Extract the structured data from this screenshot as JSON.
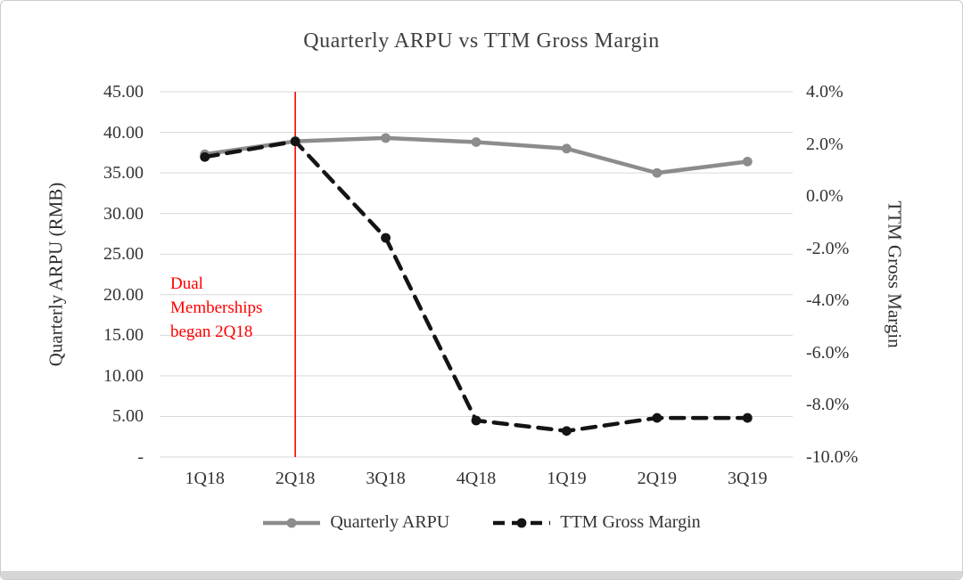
{
  "chart_data": {
    "type": "line",
    "title": "Quarterly ARPU vs TTM Gross Margin",
    "categories": [
      "1Q18",
      "2Q18",
      "3Q18",
      "4Q18",
      "1Q19",
      "2Q19",
      "3Q19"
    ],
    "series": [
      {
        "name": "Quarterly ARPU",
        "axis": "left",
        "color": "#8c8c8c",
        "dash": "solid",
        "values": [
          37.3,
          38.9,
          39.3,
          38.8,
          38.0,
          35.0,
          36.4
        ]
      },
      {
        "name": "TTM Gross Margin",
        "axis": "right",
        "color": "#141414",
        "dash": "dashed",
        "values": [
          1.5,
          2.1,
          -1.6,
          -8.6,
          -9.0,
          -8.5,
          -8.5
        ]
      }
    ],
    "left_axis": {
      "label": "Quarterly ARPU (RMB)",
      "min": 0,
      "max": 45,
      "ticks": [
        "45.00",
        "40.00",
        "35.00",
        "30.00",
        "25.00",
        "20.00",
        "15.00",
        "10.00",
        "5.00",
        "-"
      ]
    },
    "right_axis": {
      "label": "TTM Gross Margin",
      "min": -10,
      "max": 4,
      "ticks": [
        "4.0%",
        "2.0%",
        "0.0%",
        "-2.0%",
        "-4.0%",
        "-6.0%",
        "-8.0%",
        "-10.0%"
      ]
    },
    "annotation": {
      "lines": [
        "Dual",
        "Memberships",
        "began 2Q18"
      ],
      "color": "#ff0000",
      "x_category": "2Q18"
    },
    "grid": true,
    "gridline_color": "#d9d9d9",
    "legend_position": "bottom"
  }
}
